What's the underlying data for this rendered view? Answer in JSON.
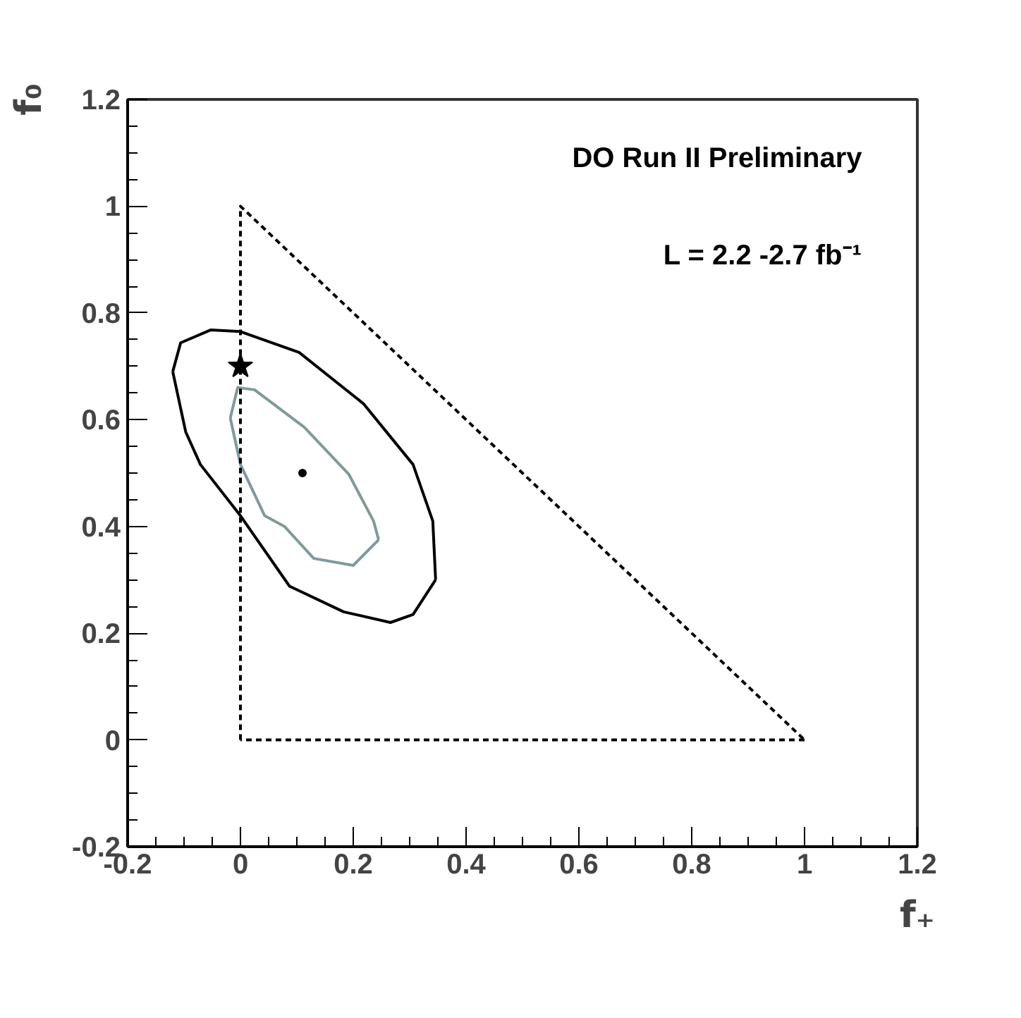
{
  "chart_data": {
    "type": "line",
    "xlabel": "f₊",
    "ylabel": "f₀",
    "annotations": [
      "DO Run II Preliminary",
      "L = 2.2 -2.7 fb⁻¹"
    ],
    "xlim": [
      -0.2,
      1.2
    ],
    "ylim": [
      -0.2,
      1.2
    ],
    "xticks": [
      -0.2,
      0,
      0.2,
      0.4,
      0.6,
      0.8,
      1,
      1.2
    ],
    "yticks": [
      -0.2,
      0,
      0.2,
      0.4,
      0.6,
      0.8,
      1,
      1.2
    ],
    "grid": false,
    "series": [
      {
        "color": "#000000",
        "line_style": "solid",
        "x": [
          -0.12,
          -0.106,
          -0.053,
          0,
          0.104,
          0.218,
          0.306,
          0.341,
          0.346
        ],
        "values": [
          0.69,
          0.744,
          0.768,
          0.765,
          0.726,
          0.63,
          0.516,
          0.41,
          0.3
        ]
      },
      {
        "color": "#000000",
        "line_style": "solid",
        "x": [
          0.346,
          0.306,
          0.266,
          0.183,
          0.087,
          0,
          -0.071,
          -0.097,
          -0.12
        ],
        "values": [
          0.3,
          0.235,
          0.22,
          0.24,
          0.288,
          0.42,
          0.516,
          0.577,
          0.69
        ]
      },
      {
        "color": "#7f9a9a",
        "line_style": "solid",
        "x": [
          -0.018,
          -0.005,
          0.025,
          0.113,
          0.192,
          0.236,
          0.245
        ],
        "values": [
          0.603,
          0.66,
          0.656,
          0.586,
          0.498,
          0.41,
          0.375
        ]
      },
      {
        "color": "#7f9a9a",
        "line_style": "solid",
        "x": [
          0.245,
          0.2,
          0.13,
          0.078,
          0.043,
          0,
          -0.018
        ],
        "values": [
          0.375,
          0.327,
          0.34,
          0.4,
          0.42,
          0.516,
          0.603
        ]
      },
      {
        "color": "#000000",
        "line_style": "dashed",
        "x": [
          0,
          0,
          1
        ],
        "values": [
          0,
          1,
          0
        ]
      },
      {
        "color": "#000000",
        "line_style": "dashed",
        "x": [
          1,
          0
        ],
        "values": [
          0,
          0
        ]
      },
      {
        "type": "scatter",
        "color": "#000000",
        "marker": "circle",
        "x": [
          0.11
        ],
        "values": [
          0.5
        ]
      },
      {
        "type": "scatter",
        "color": "#000000",
        "marker": "star",
        "x": [
          0
        ],
        "values": [
          0.7
        ]
      }
    ]
  }
}
